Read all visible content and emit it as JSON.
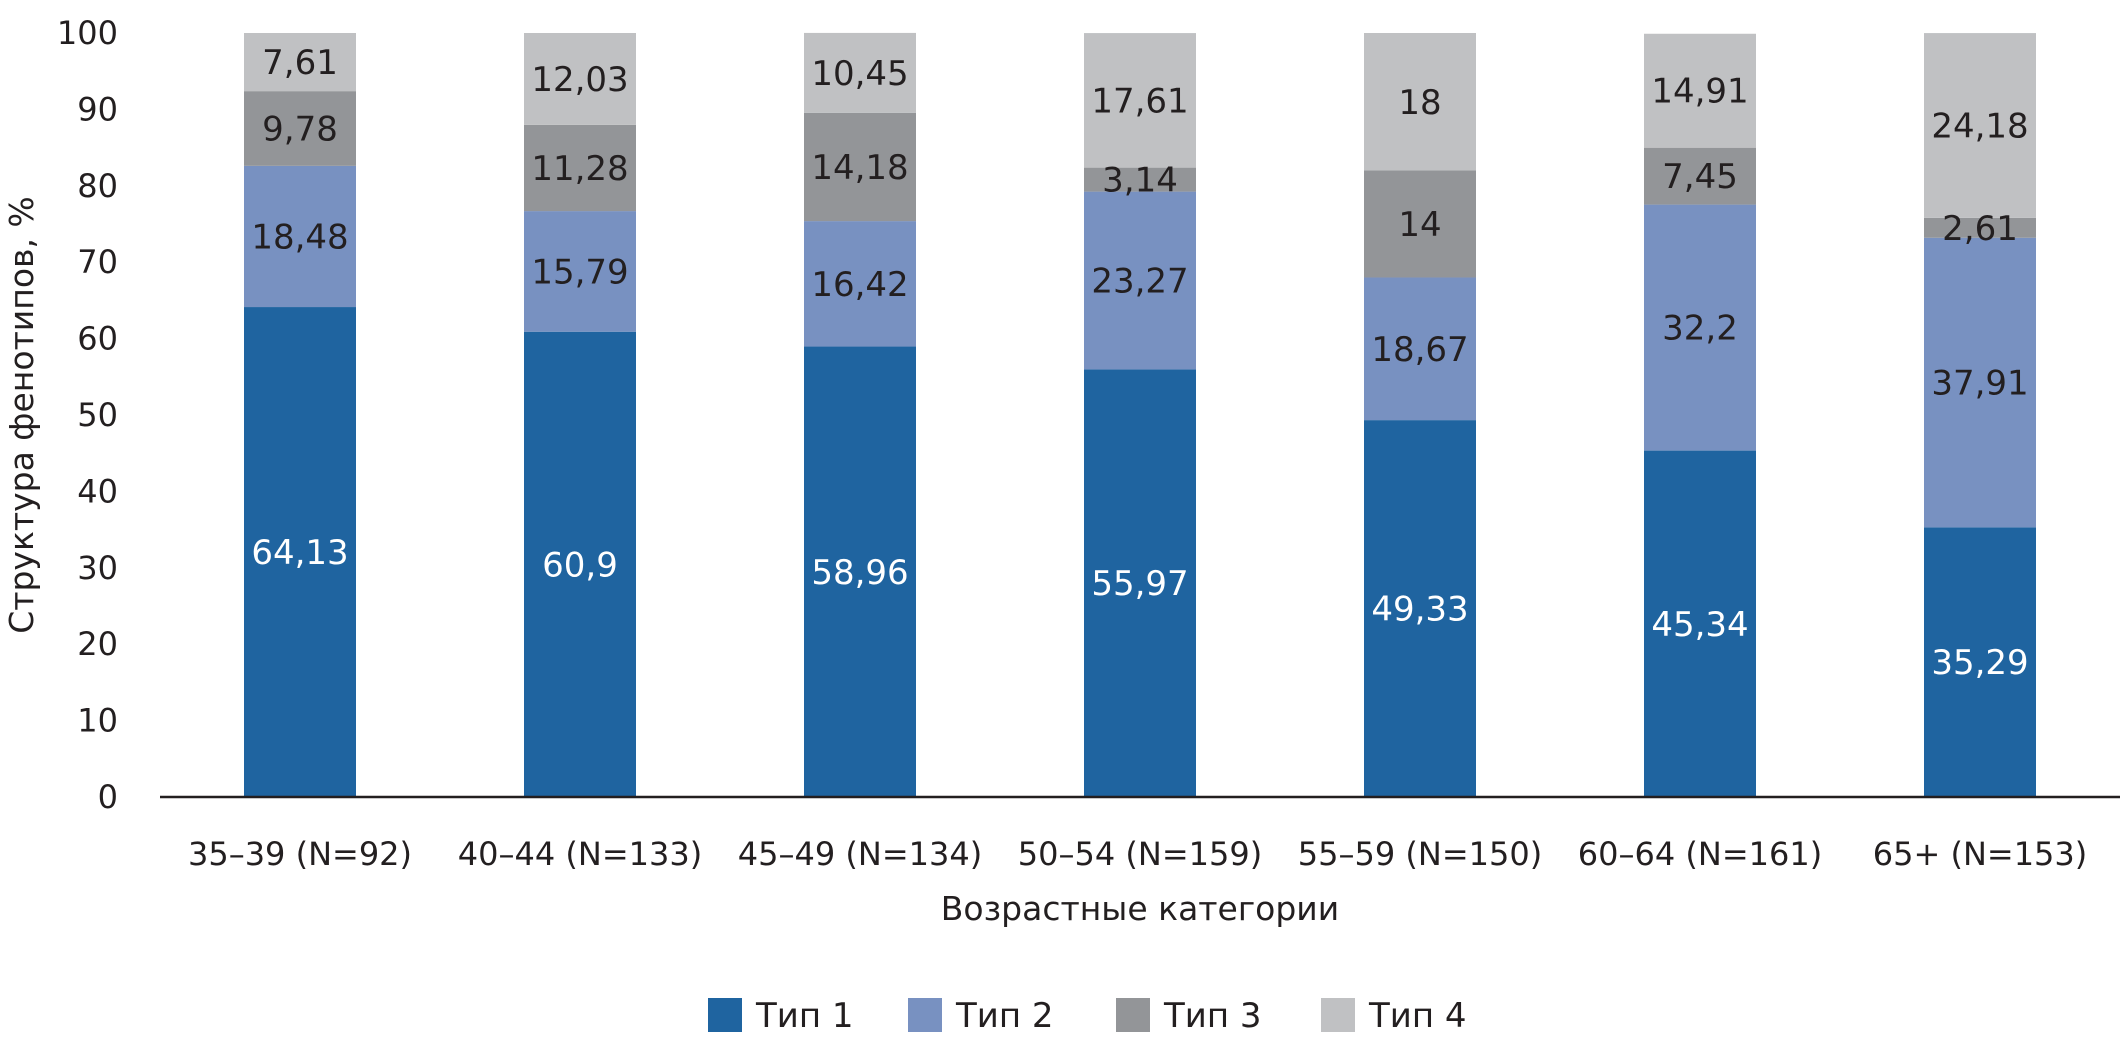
{
  "chart_data": {
    "type": "bar",
    "stacked": true,
    "title": "",
    "xlabel": "Возрастные категории",
    "ylabel": "Структура фенотипов, %",
    "ylim": [
      0,
      100
    ],
    "yticks": [
      "0",
      "10",
      "20",
      "30",
      "40",
      "50",
      "60",
      "70",
      "80",
      "90",
      "100"
    ],
    "grid": false,
    "legend_position": "bottom",
    "categories": [
      "35–39 (N=92)",
      "40–44 (N=133)",
      "45–49 (N=134)",
      "50–54 (N=159)",
      "55–59 (N=150)",
      "60–64 (N=161)",
      "65+ (N=153)"
    ],
    "series": [
      {
        "name": "Тип 1",
        "color": "#1f64a0",
        "label_color": "#ffffff",
        "values": [
          64.13,
          60.9,
          58.96,
          55.97,
          49.33,
          45.34,
          35.29
        ],
        "labels": [
          "64,13",
          "60,9",
          "58,96",
          "55,97",
          "49,33",
          "45,34",
          "35,29"
        ]
      },
      {
        "name": "Тип 2",
        "color": "#7891c1",
        "label_color": "#231f20",
        "values": [
          18.48,
          15.79,
          16.42,
          23.27,
          18.67,
          32.2,
          37.91
        ],
        "labels": [
          "18,48",
          "15,79",
          "16,42",
          "23,27",
          "18,67",
          "32,2",
          "37,91"
        ]
      },
      {
        "name": "Тип 3",
        "color": "#939598",
        "label_color": "#231f20",
        "values": [
          9.78,
          11.28,
          14.18,
          3.14,
          14,
          7.45,
          2.61
        ],
        "labels": [
          "9,78",
          "11,28",
          "14,18",
          "3,14",
          "14",
          "7,45",
          "2,61"
        ]
      },
      {
        "name": "Тип 4",
        "color": "#c0c1c3",
        "label_color": "#231f20",
        "values": [
          7.61,
          12.03,
          10.45,
          17.61,
          18,
          14.91,
          24.18
        ],
        "labels": [
          "7,61",
          "12,03",
          "10,45",
          "17,61",
          "18",
          "14,91",
          "24,18"
        ]
      }
    ]
  }
}
